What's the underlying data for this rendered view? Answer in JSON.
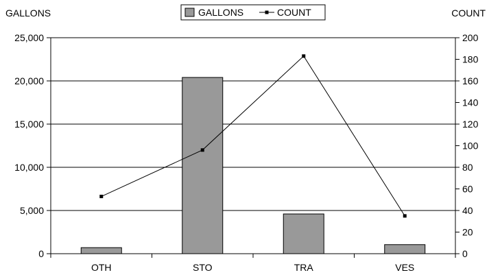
{
  "chart_data": {
    "type": "bar",
    "categories": [
      "OTH",
      "STO",
      "TRA",
      "VES"
    ],
    "series": [
      {
        "name": "GALLONS",
        "type": "bar",
        "axis": "left",
        "values": [
          700,
          20400,
          4600,
          1050
        ]
      },
      {
        "name": "COUNT",
        "type": "line",
        "axis": "right",
        "values": [
          53,
          96,
          183,
          35
        ]
      }
    ],
    "ylabel_left": "GALLONS",
    "ylabel_right": "COUNT",
    "ylim_left": [
      0,
      25000
    ],
    "ylim_right": [
      0,
      200
    ],
    "yticks_left": [
      "0",
      "5,000",
      "10,000",
      "15,000",
      "20,000",
      "25,000"
    ],
    "yticks_right": [
      "0",
      "20",
      "40",
      "60",
      "80",
      "100",
      "120",
      "140",
      "160",
      "180",
      "200"
    ],
    "grid": true,
    "legend_position": "top-center",
    "colors": {
      "bar": "#999999",
      "line": "#000000"
    }
  }
}
